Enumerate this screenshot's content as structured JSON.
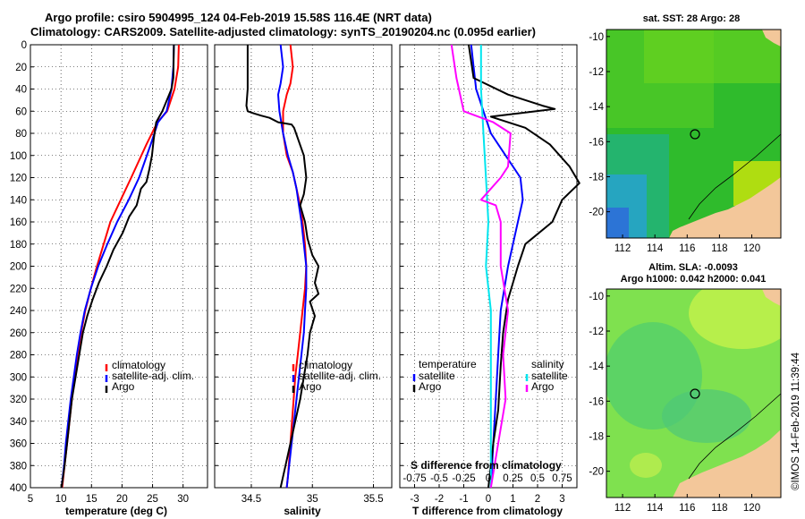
{
  "header": {
    "line1": "Argo profile: csiro 5904995_124 04-Feb-2019 15.58S 116.4E (NRT data)",
    "line2": "Climatology: CARS2009. Satellite-adjusted climatology: synTS_20190204.nc (0.095d earlier)"
  },
  "colors": {
    "climatology": "#ff0000",
    "satellite": "#0000ff",
    "argo": "#000000",
    "sat_salt": "#00e5ee",
    "salinity_diff": "#ff00ff"
  },
  "chart_data": [
    {
      "type": "line",
      "name": "temperature",
      "xlabel": "temperature (deg C)",
      "ylabel": "",
      "xlim": [
        5,
        34
      ],
      "ylim": [
        400,
        0
      ],
      "xticks": [
        5,
        10,
        15,
        20,
        25,
        30
      ],
      "yticks": [
        0,
        20,
        40,
        60,
        80,
        100,
        120,
        140,
        160,
        180,
        200,
        220,
        240,
        260,
        280,
        300,
        320,
        340,
        360,
        380,
        400
      ],
      "legend": [
        "climatology",
        "satellite-adj. clim.",
        "Argo"
      ],
      "series": [
        {
          "name": "climatology",
          "color": "#ff0000",
          "points": [
            [
              29.3,
              0
            ],
            [
              29.2,
              20
            ],
            [
              28.6,
              40
            ],
            [
              27.4,
              60
            ],
            [
              25.8,
              70
            ],
            [
              24,
              90
            ],
            [
              21.5,
              120
            ],
            [
              19.8,
              140
            ],
            [
              18.1,
              160
            ],
            [
              17,
              180
            ],
            [
              15.9,
              200
            ],
            [
              14.9,
              220
            ],
            [
              14,
              240
            ],
            [
              13.3,
              260
            ],
            [
              12.7,
              280
            ],
            [
              12.2,
              300
            ],
            [
              11.8,
              320
            ],
            [
              11.4,
              340
            ],
            [
              11,
              360
            ],
            [
              10.6,
              380
            ],
            [
              10.2,
              400
            ]
          ]
        },
        {
          "name": "satellite-adj. clim.",
          "color": "#0000ff",
          "points": [
            [
              28.5,
              0
            ],
            [
              28.4,
              20
            ],
            [
              28.1,
              40
            ],
            [
              27.3,
              60
            ],
            [
              25.9,
              70
            ],
            [
              24.7,
              90
            ],
            [
              22.8,
              120
            ],
            [
              21.1,
              140
            ],
            [
              19.2,
              160
            ],
            [
              17.6,
              180
            ],
            [
              16.1,
              200
            ],
            [
              14.9,
              220
            ],
            [
              13.9,
              240
            ],
            [
              13.2,
              260
            ],
            [
              12.6,
              280
            ],
            [
              12.1,
              300
            ],
            [
              11.6,
              320
            ],
            [
              11.2,
              340
            ],
            [
              10.8,
              360
            ],
            [
              10.5,
              380
            ],
            [
              10.1,
              400
            ]
          ]
        },
        {
          "name": "Argo",
          "color": "#000000",
          "points": [
            [
              28.5,
              0
            ],
            [
              28.4,
              30
            ],
            [
              28.1,
              40
            ],
            [
              26.6,
              60
            ],
            [
              25.6,
              70
            ],
            [
              25.2,
              85
            ],
            [
              24.9,
              100
            ],
            [
              24.5,
              112
            ],
            [
              24,
              124
            ],
            [
              23.1,
              130
            ],
            [
              22.4,
              145
            ],
            [
              21.2,
              155
            ],
            [
              20.1,
              170
            ],
            [
              18.6,
              185
            ],
            [
              17.5,
              200
            ],
            [
              16.2,
              215
            ],
            [
              15.2,
              230
            ],
            [
              14.3,
              245
            ],
            [
              13.6,
              260
            ],
            [
              13,
              280
            ],
            [
              12.4,
              300
            ],
            [
              11.8,
              320
            ],
            [
              11.4,
              340
            ],
            [
              11,
              360
            ],
            [
              10.6,
              380
            ],
            [
              10.1,
              400
            ]
          ]
        }
      ]
    },
    {
      "type": "line",
      "name": "salinity",
      "xlabel": "salinity",
      "xlim": [
        34.2,
        35.65
      ],
      "ylim": [
        400,
        0
      ],
      "xticks": [
        34.5,
        35,
        35.5
      ],
      "legend": [
        "climatology",
        "satellite-adj. clim.",
        "Argo"
      ],
      "series": [
        {
          "name": "climatology",
          "color": "#ff0000",
          "points": [
            [
              34.82,
              0
            ],
            [
              34.84,
              20
            ],
            [
              34.82,
              35
            ],
            [
              34.79,
              45
            ],
            [
              34.76,
              60
            ],
            [
              34.76,
              80
            ],
            [
              34.79,
              100
            ],
            [
              34.84,
              115
            ],
            [
              34.87,
              130
            ],
            [
              34.9,
              145
            ],
            [
              34.92,
              160
            ],
            [
              34.94,
              180
            ],
            [
              34.95,
              200
            ],
            [
              34.94,
              220
            ],
            [
              34.92,
              240
            ],
            [
              34.9,
              260
            ],
            [
              34.88,
              280
            ],
            [
              34.86,
              300
            ],
            [
              34.84,
              330
            ],
            [
              34.82,
              360
            ],
            [
              34.8,
              390
            ],
            [
              34.79,
              400
            ]
          ]
        },
        {
          "name": "satellite-adj. clim.",
          "color": "#0000ff",
          "points": [
            [
              34.74,
              0
            ],
            [
              34.76,
              20
            ],
            [
              34.74,
              35
            ],
            [
              34.72,
              45
            ],
            [
              34.73,
              60
            ],
            [
              34.76,
              80
            ],
            [
              34.8,
              100
            ],
            [
              34.84,
              115
            ],
            [
              34.87,
              130
            ],
            [
              34.89,
              145
            ],
            [
              34.91,
              160
            ],
            [
              34.93,
              180
            ],
            [
              34.95,
              200
            ],
            [
              34.95,
              220
            ],
            [
              34.94,
              240
            ],
            [
              34.93,
              260
            ],
            [
              34.91,
              280
            ],
            [
              34.89,
              300
            ],
            [
              34.87,
              320
            ],
            [
              34.84,
              350
            ],
            [
              34.81,
              380
            ],
            [
              34.79,
              400
            ]
          ]
        },
        {
          "name": "Argo",
          "color": "#000000",
          "points": [
            [
              34.47,
              0
            ],
            [
              34.47,
              15
            ],
            [
              34.47,
              40
            ],
            [
              34.46,
              55
            ],
            [
              34.47,
              60
            ],
            [
              34.52,
              62
            ],
            [
              34.58,
              64
            ],
            [
              34.65,
              66
            ],
            [
              34.72,
              70
            ],
            [
              34.83,
              72
            ],
            [
              34.85,
              75
            ],
            [
              34.93,
              100
            ],
            [
              34.95,
              120
            ],
            [
              34.93,
              135
            ],
            [
              34.9,
              145
            ],
            [
              34.94,
              160
            ],
            [
              34.96,
              175
            ],
            [
              35,
              190
            ],
            [
              35.05,
              200
            ],
            [
              35.02,
              215
            ],
            [
              35.05,
              225
            ],
            [
              34.98,
              232
            ],
            [
              35.02,
              245
            ],
            [
              34.98,
              260
            ],
            [
              34.96,
              280
            ],
            [
              34.93,
              300
            ],
            [
              34.9,
              320
            ],
            [
              34.86,
              340
            ],
            [
              34.82,
              360
            ],
            [
              34.78,
              380
            ],
            [
              34.74,
              400
            ]
          ]
        }
      ]
    },
    {
      "type": "line",
      "name": "difference",
      "xlabel": "T difference from climatology",
      "xlabel_top": "S difference from climatology",
      "xlim": [
        -3.6,
        3.6
      ],
      "ylim": [
        400,
        0
      ],
      "xticks": [
        -3,
        -2,
        -1,
        0,
        1,
        2,
        3
      ],
      "top_ticks": [
        "-0.75",
        "-0.5",
        "-0.25",
        "0",
        "0.25",
        "0.5",
        "0.75"
      ],
      "legend_temperature": [
        "temperature",
        "satellite",
        "Argo"
      ],
      "legend_salinity": [
        "salinity",
        "satellite",
        "Argo"
      ],
      "series": [
        {
          "name": "T satellite",
          "color": "#0000ff",
          "points": [
            [
              -0.7,
              0
            ],
            [
              -0.6,
              20
            ],
            [
              -0.5,
              40
            ],
            [
              -0.2,
              60
            ],
            [
              0.1,
              80
            ],
            [
              0.7,
              100
            ],
            [
              1.3,
              120
            ],
            [
              1.4,
              140
            ],
            [
              1.2,
              160
            ],
            [
              0.8,
              200
            ],
            [
              0.5,
              240
            ],
            [
              0.4,
              280
            ],
            [
              0.3,
              320
            ],
            [
              0.2,
              360
            ],
            [
              0.1,
              400
            ]
          ]
        },
        {
          "name": "T Argo",
          "color": "#000000",
          "points": [
            [
              -0.8,
              0
            ],
            [
              -0.6,
              30
            ],
            [
              0.8,
              45
            ],
            [
              2.2,
              55
            ],
            [
              2.7,
              58
            ],
            [
              1.2,
              62
            ],
            [
              0.1,
              65
            ],
            [
              1.5,
              75
            ],
            [
              2.5,
              90
            ],
            [
              3.3,
              110
            ],
            [
              3.7,
              125
            ],
            [
              3,
              140
            ],
            [
              2.6,
              160
            ],
            [
              1.5,
              180
            ],
            [
              1.2,
              200
            ],
            [
              0.8,
              230
            ],
            [
              0.6,
              260
            ],
            [
              0.5,
              290
            ],
            [
              0.4,
              330
            ],
            [
              0.2,
              360
            ],
            [
              0,
              400
            ]
          ]
        },
        {
          "name": "S satellite",
          "color": "#00e5ee",
          "points": [
            [
              -0.3,
              0
            ],
            [
              -0.3,
              40
            ],
            [
              -0.2,
              80
            ],
            [
              -0.1,
              120
            ],
            [
              0,
              160
            ],
            [
              -0.1,
              200
            ],
            [
              0.1,
              240
            ],
            [
              0.1,
              280
            ],
            [
              0.1,
              320
            ],
            [
              0.1,
              360
            ],
            [
              0.1,
              400
            ]
          ]
        },
        {
          "name": "S Argo",
          "color": "#ff00ff",
          "points": [
            [
              -1.5,
              0
            ],
            [
              -1.3,
              30
            ],
            [
              -1,
              60
            ],
            [
              0.2,
              70
            ],
            [
              0.9,
              80
            ],
            [
              0.8,
              110
            ],
            [
              0.5,
              120
            ],
            [
              -0.3,
              140
            ],
            [
              0.3,
              145
            ],
            [
              0.5,
              160
            ],
            [
              0.5,
              200
            ],
            [
              0.8,
              240
            ],
            [
              0.6,
              280
            ],
            [
              0.7,
              320
            ],
            [
              0.4,
              360
            ],
            [
              0.1,
              400
            ]
          ]
        }
      ]
    },
    {
      "type": "heatmap",
      "name": "sst_map",
      "title": "sat. SST: 28 Argo: 28",
      "xticks": [
        112,
        114,
        116,
        118,
        120
      ],
      "yticks": [
        -10,
        -12,
        -14,
        -16,
        -18,
        -20
      ],
      "xlim": [
        111,
        121.8
      ],
      "ylim": [
        -21.5,
        -9.6
      ],
      "argo_position": [
        116.4,
        -15.58
      ]
    },
    {
      "type": "heatmap",
      "name": "sla_map",
      "title": "Altim. SLA: -0.0093",
      "subtitle": "Argo h1000: 0.042 h2000: 0.041",
      "xticks": [
        112,
        114,
        116,
        118,
        120
      ],
      "yticks": [
        -10,
        -12,
        -14,
        -16,
        -18,
        -20
      ],
      "xlim": [
        111,
        121.8
      ],
      "ylim": [
        -21.5,
        -9.6
      ],
      "argo_position": [
        116.4,
        -15.58
      ]
    }
  ],
  "watermark": "©IMOS 14-Feb-2019 11:39:44"
}
